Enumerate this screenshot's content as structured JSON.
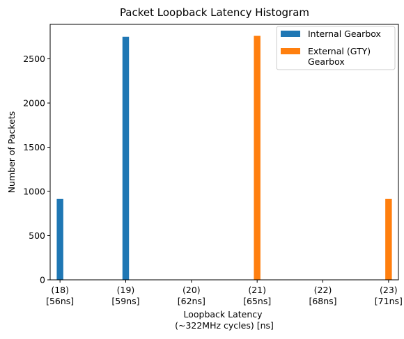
{
  "chart_data": {
    "type": "bar",
    "title": "Packet Loopback Latency Histogram",
    "xlabel": [
      "Loopback Latency",
      "(~322MHz cycles) [ns]"
    ],
    "ylabel": "Number of Packets",
    "xlim": [
      17.85,
      23.15
    ],
    "ylim": [
      0,
      2890
    ],
    "yticks": [
      0,
      500,
      1000,
      1500,
      2000,
      2500
    ],
    "xticks": [
      {
        "value": 18,
        "label": [
          "(18)",
          "[56ns]"
        ]
      },
      {
        "value": 19,
        "label": [
          "(19)",
          "[59ns]"
        ]
      },
      {
        "value": 20,
        "label": [
          "(20)",
          "[62ns]"
        ]
      },
      {
        "value": 21,
        "label": [
          "(21)",
          "[65ns]"
        ]
      },
      {
        "value": 22,
        "label": [
          "(22)",
          "[68ns]"
        ]
      },
      {
        "value": 23,
        "label": [
          "(23)",
          "[71ns]"
        ]
      }
    ],
    "bar_width": 0.1,
    "series": [
      {
        "name": "Internal Gearbox",
        "color": "#1f77b4",
        "x": [
          18,
          19
        ],
        "values": [
          915,
          2750
        ]
      },
      {
        "name": "External (GTY) Gearbox",
        "legend_lines": [
          "External (GTY)",
          "Gearbox"
        ],
        "color": "#ff7f0e",
        "x": [
          21,
          23
        ],
        "values": [
          2760,
          915
        ]
      }
    ],
    "legend": "top-right",
    "grid": false
  }
}
